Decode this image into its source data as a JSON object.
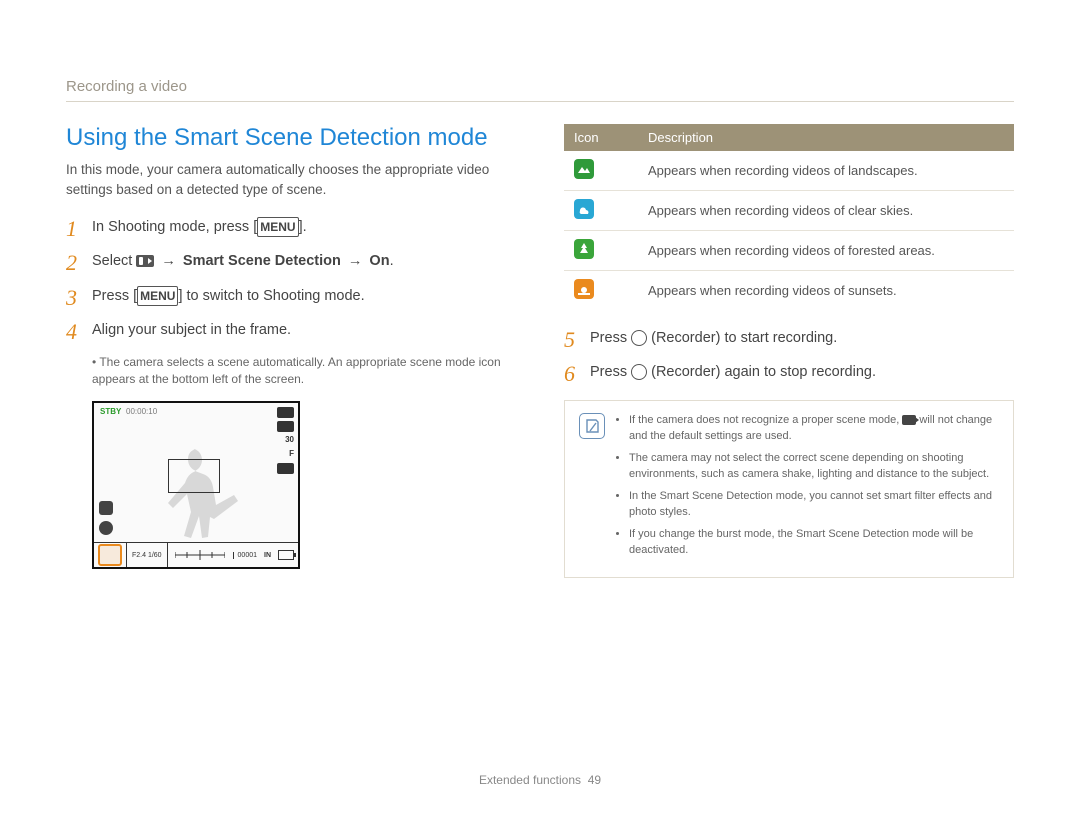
{
  "breadcrumb": "Recording a video",
  "title": "Using the Smart Scene Detection mode",
  "intro": "In this mode, your camera automatically chooses the appropriate video settings based on a detected type of scene.",
  "steps_left": {
    "s1_pre": "In Shooting mode, press [",
    "s1_menu": "MENU",
    "s1_post": "].",
    "s2_pre": "Select ",
    "s2_arrow": " → ",
    "s2_bold": "Smart Scene Detection",
    "s2_on": "On",
    "s2_end": ".",
    "s3_pre": "Press [",
    "s3_menu": "MENU",
    "s3_post": "] to switch to Shooting mode.",
    "s4": "Align your subject in the frame.",
    "s4_sub": "The camera selects a scene automatically. An appropriate scene mode icon appears at the bottom left of the screen."
  },
  "shot": {
    "stby": "STBY",
    "time": "00:00:10",
    "fstop": "F2.4 1/60",
    "counter": "00001",
    "rate": "30",
    "fps": "F"
  },
  "icon_table": {
    "head_icon": "Icon",
    "head_desc": "Description",
    "rows": [
      {
        "bg": "#2f9a3a",
        "shape": "landscape",
        "desc": "Appears when recording videos of landscapes."
      },
      {
        "bg": "#29a7d4",
        "shape": "sky",
        "desc": "Appears when recording videos of clear skies."
      },
      {
        "bg": "#3aa53a",
        "shape": "forest",
        "desc": "Appears when recording videos of forested areas."
      },
      {
        "bg": "#ea8a1e",
        "shape": "sunset",
        "desc": "Appears when recording videos of sunsets."
      }
    ]
  },
  "steps_right": {
    "s5_pre": "Press ",
    "s5_post": " (Recorder) to start recording.",
    "s6_pre": "Press ",
    "s6_post": " (Recorder) again to stop recording."
  },
  "notes": [
    "If the camera does not recognize a proper scene mode, ⟨cam⟩ will not change and the default settings are used.",
    "The camera may not select the correct scene depending on shooting environments, such as camera shake, lighting and distance to the subject.",
    "In the Smart Scene Detection mode, you cannot set smart filter effects and photo styles.",
    "If you change the burst mode, the Smart Scene Detection mode will be deactivated."
  ],
  "footer_label": "Extended functions",
  "footer_page": "49",
  "step_nums": {
    "1": "1",
    "2": "2",
    "3": "3",
    "4": "4",
    "5": "5",
    "6": "6"
  }
}
